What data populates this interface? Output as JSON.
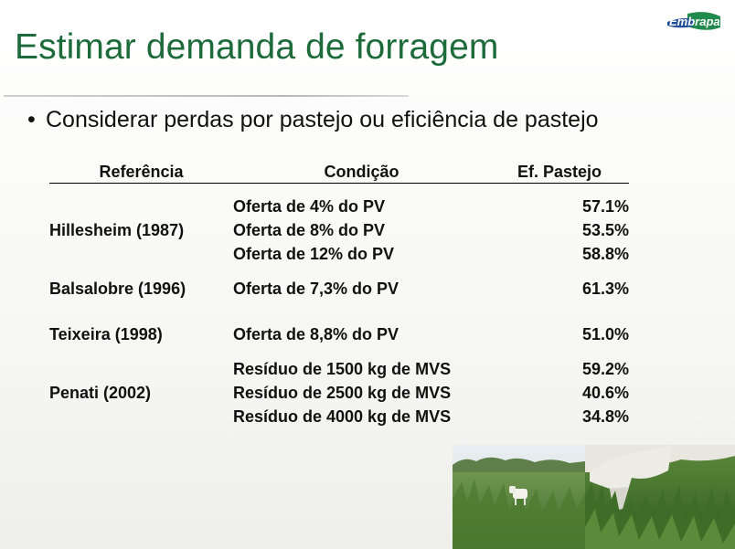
{
  "slide": {
    "title": "Estimar demanda de forragem",
    "logo_text": "Embrapa",
    "bullet": "Considerar perdas por pastejo ou eficiência de pastejo"
  },
  "table": {
    "headers": {
      "reference": "Referência",
      "condition": "Condição",
      "efficiency": "Ef. Pastejo"
    },
    "groups": [
      {
        "reference": "Hillesheim (1987)",
        "rows": [
          {
            "condition": "Oferta de 4% do PV",
            "efficiency": "57.1%"
          },
          {
            "condition": "Oferta de 8% do PV",
            "efficiency": "53.5%"
          },
          {
            "condition": "Oferta de 12% do PV",
            "efficiency": "58.8%"
          }
        ]
      },
      {
        "reference": "Balsalobre (1996)",
        "rows": [
          {
            "condition": "Oferta de 7,3% do PV",
            "efficiency": "61.3%"
          }
        ]
      },
      {
        "reference": "Teixeira (1998)",
        "rows": [
          {
            "condition": "Oferta de 8,8% do PV",
            "efficiency": "51.0%"
          }
        ]
      },
      {
        "reference": "Penati (2002)",
        "rows": [
          {
            "condition": "Resíduo de 1500 kg de MVS",
            "efficiency": "59.2%"
          },
          {
            "condition": "Resíduo de 2500 kg de MVS",
            "efficiency": "40.6%"
          },
          {
            "condition": "Resíduo de 4000 kg de MVS",
            "efficiency": "34.8%"
          }
        ]
      }
    ]
  },
  "colors": {
    "title": "#1d6b3a",
    "logo_green": "#1f8a4c",
    "logo_blue": "#1f4e9c"
  },
  "images": {
    "photo": "pasture-cattle-photo"
  }
}
